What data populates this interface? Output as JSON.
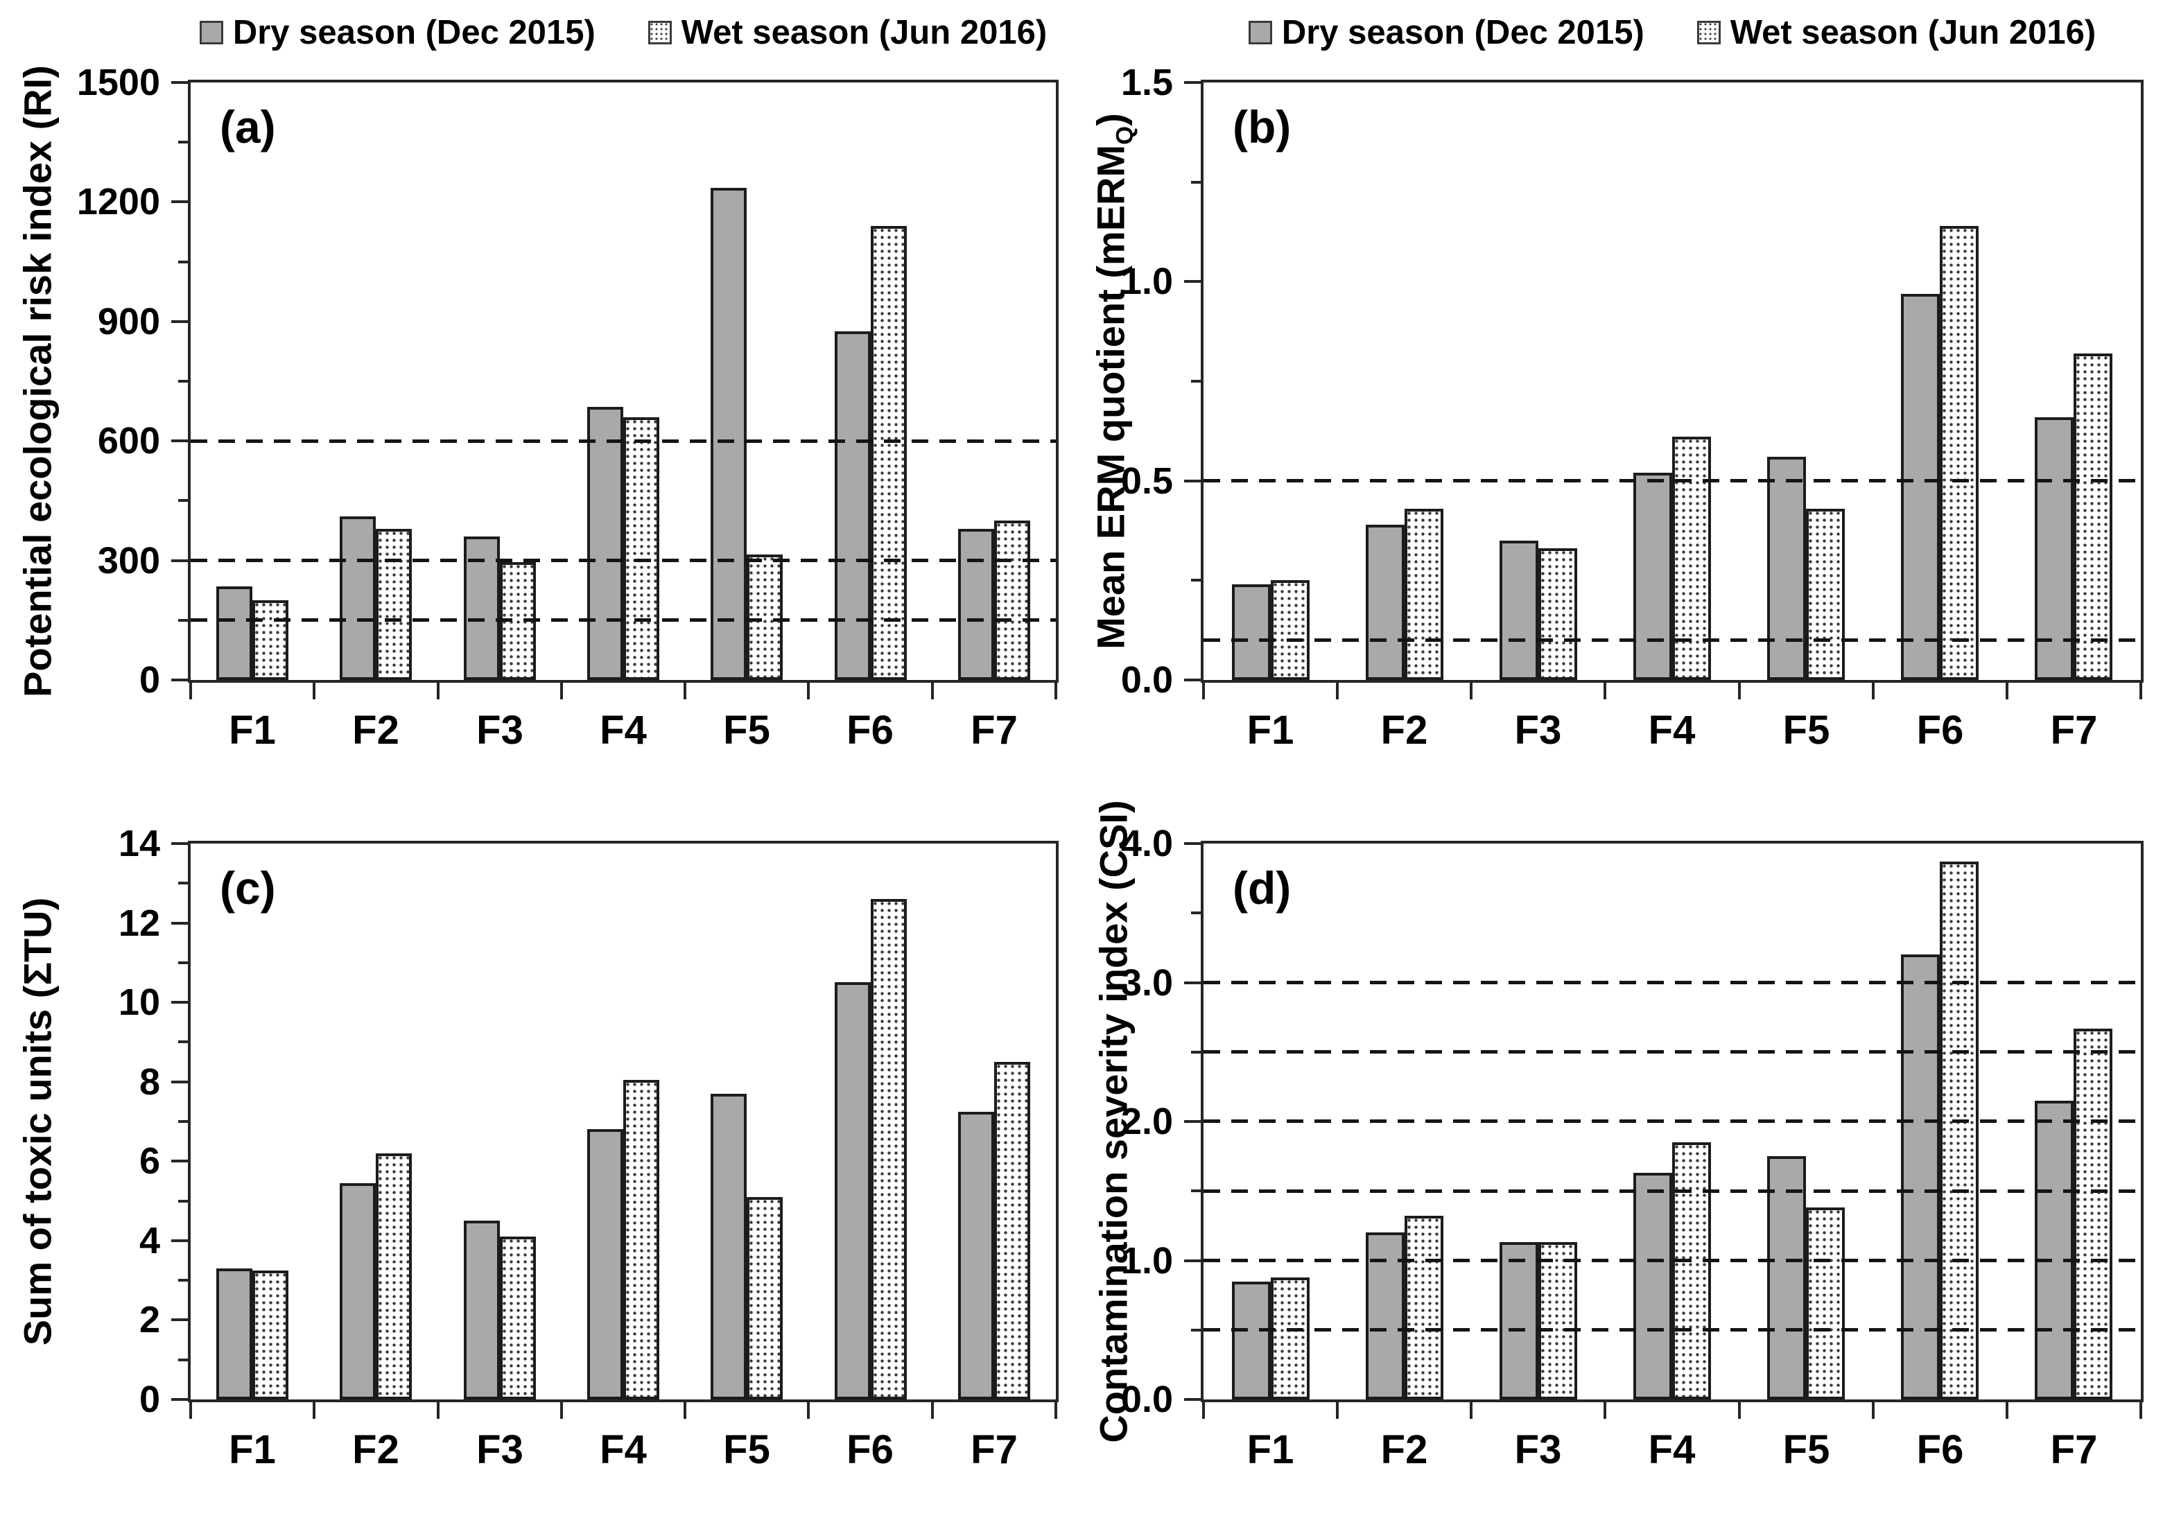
{
  "colors": {
    "background": "#ffffff",
    "dry_fill": "#a9a9a9",
    "wet_fill": "#ffffff",
    "bar_outline": "#1c1c1c",
    "axis": "#262626",
    "text": "#000000"
  },
  "legend": {
    "items": [
      {
        "id": "dry",
        "label": "Dry season (Dec 2015)"
      },
      {
        "id": "wet",
        "label": "Wet season (Jun 2016)"
      }
    ]
  },
  "chart_data": [
    {
      "type": "bar",
      "panel_label": "(a)",
      "ylabel": "Potential ecological risk index (RI)",
      "categories": [
        "F1",
        "F2",
        "F3",
        "F4",
        "F5",
        "F6",
        "F7"
      ],
      "series": [
        {
          "name": "Dry season (Dec 2015)",
          "values": [
            235,
            410,
            360,
            685,
            1235,
            875,
            380
          ]
        },
        {
          "name": "Wet season (Jun 2016)",
          "values": [
            200,
            380,
            295,
            660,
            315,
            1140,
            400
          ]
        }
      ],
      "ylim": [
        0,
        1500
      ],
      "ytick_values": [
        0,
        300,
        600,
        900,
        1200,
        1500
      ],
      "ytick_labels": [
        "0",
        "300",
        "600",
        "900",
        "1200",
        "1500"
      ],
      "minor_tick_step": 150,
      "dashed_lines": [
        150,
        300,
        600
      ],
      "legend_shown": true,
      "legend_position": "top"
    },
    {
      "type": "bar",
      "panel_label": "(b)",
      "ylabel": "Mean ERM quotient (mERMQ)",
      "ylabel_parts": {
        "pre": "Mean ERM quotient (mERM",
        "sub": "Q",
        "post": ")"
      },
      "categories": [
        "F1",
        "F2",
        "F3",
        "F4",
        "F5",
        "F6",
        "F7"
      ],
      "series": [
        {
          "name": "Dry season (Dec 2015)",
          "values": [
            0.24,
            0.39,
            0.35,
            0.52,
            0.56,
            0.97,
            0.66
          ]
        },
        {
          "name": "Wet season (Jun 2016)",
          "values": [
            0.25,
            0.43,
            0.33,
            0.61,
            0.43,
            1.14,
            0.82
          ]
        }
      ],
      "ylim": [
        0,
        1.5
      ],
      "ytick_values": [
        0,
        0.5,
        1,
        1.5
      ],
      "ytick_labels": [
        "0.0",
        "0.5",
        "1.0",
        "1.5"
      ],
      "minor_tick_step": 0.25,
      "dashed_lines": [
        0.1,
        0.5
      ],
      "legend_shown": true,
      "legend_position": "top"
    },
    {
      "type": "bar",
      "panel_label": "(c)",
      "ylabel": "Sum of toxic units (ΣTU)",
      "categories": [
        "F1",
        "F2",
        "F3",
        "F4",
        "F5",
        "F6",
        "F7"
      ],
      "series": [
        {
          "name": "Dry season (Dec 2015)",
          "values": [
            3.3,
            5.45,
            4.5,
            6.8,
            7.7,
            10.5,
            7.25
          ]
        },
        {
          "name": "Wet season (Jun 2016)",
          "values": [
            3.25,
            6.2,
            4.1,
            8.05,
            5.1,
            12.6,
            8.5
          ]
        }
      ],
      "ylim": [
        0,
        14
      ],
      "ytick_values": [
        0,
        2,
        4,
        6,
        8,
        10,
        12,
        14
      ],
      "ytick_labels": [
        "0",
        "2",
        "4",
        "6",
        "8",
        "10",
        "12",
        "14"
      ],
      "minor_tick_step": 1,
      "dashed_lines": [],
      "legend_shown": false
    },
    {
      "type": "bar",
      "panel_label": "(d)",
      "ylabel": "Contamination severity index (CSI)",
      "categories": [
        "F1",
        "F2",
        "F3",
        "F4",
        "F5",
        "F6",
        "F7"
      ],
      "series": [
        {
          "name": "Dry season (Dec 2015)",
          "values": [
            0.85,
            1.2,
            1.13,
            1.63,
            1.75,
            3.2,
            2.15
          ]
        },
        {
          "name": "Wet season (Jun 2016)",
          "values": [
            0.88,
            1.32,
            1.13,
            1.85,
            1.38,
            3.87,
            2.67
          ]
        }
      ],
      "ylim": [
        0,
        4
      ],
      "ytick_values": [
        0,
        1,
        2,
        3,
        4
      ],
      "ytick_labels": [
        "0.0",
        "1.0",
        "2.0",
        "3.0",
        "4.0"
      ],
      "minor_tick_step": 0.5,
      "dashed_lines": [
        0.5,
        1,
        1.5,
        2,
        2.5,
        3
      ],
      "legend_shown": false
    }
  ]
}
